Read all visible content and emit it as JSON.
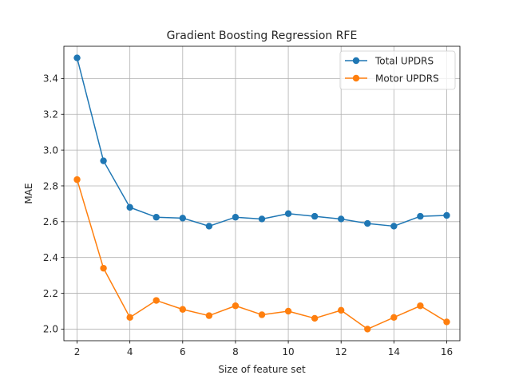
{
  "chart_data": {
    "type": "line",
    "title": "Gradient Boosting Regression RFE",
    "xlabel": "Size of feature set",
    "ylabel": "MAE",
    "xlim": [
      1.5,
      16.5
    ],
    "ylim": [
      1.935,
      3.58
    ],
    "xticks": [
      2,
      4,
      6,
      8,
      10,
      12,
      14,
      16
    ],
    "yticks": [
      2.0,
      2.2,
      2.4,
      2.6,
      2.8,
      3.0,
      3.2,
      3.4
    ],
    "grid": true,
    "legend_position": "top-right",
    "x": [
      2,
      3,
      4,
      5,
      6,
      7,
      8,
      9,
      10,
      11,
      12,
      13,
      14,
      15,
      16
    ],
    "series": [
      {
        "name": "Total UPDRS",
        "color": "#1f77b4",
        "marker": "circle",
        "values": [
          3.515,
          2.94,
          2.68,
          2.625,
          2.62,
          2.575,
          2.625,
          2.615,
          2.645,
          2.63,
          2.615,
          2.59,
          2.575,
          2.63,
          2.635
        ]
      },
      {
        "name": "Motor UPDRS",
        "color": "#ff7f0e",
        "marker": "circle",
        "values": [
          2.835,
          2.34,
          2.065,
          2.16,
          2.11,
          2.075,
          2.13,
          2.08,
          2.1,
          2.06,
          2.105,
          2.0,
          2.065,
          2.13,
          2.04
        ]
      }
    ]
  }
}
